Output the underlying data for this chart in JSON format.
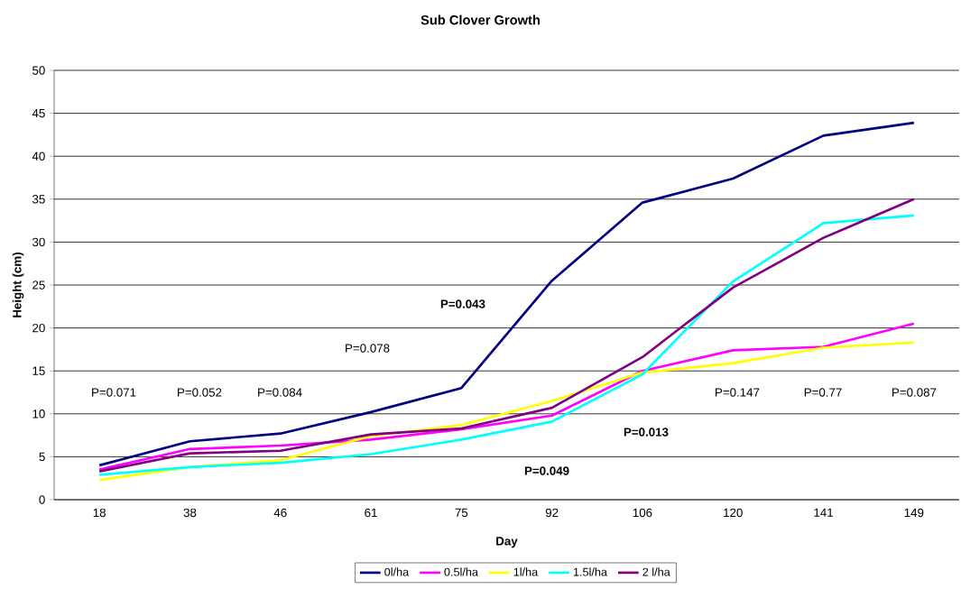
{
  "chart_data": {
    "type": "line",
    "title": "Sub Clover Growth",
    "xlabel": "Day",
    "ylabel": "Height (cm)",
    "categories": [
      "18",
      "38",
      "46",
      "61",
      "75",
      "92",
      "106",
      "120",
      "141",
      "149"
    ],
    "series": [
      {
        "name": "0l/ha",
        "color": "#000080",
        "values": [
          4.0,
          6.8,
          7.7,
          10.2,
          13.0,
          25.5,
          34.6,
          37.4,
          42.4,
          43.9
        ]
      },
      {
        "name": "0.5l/ha",
        "color": "#ff00ff",
        "values": [
          3.5,
          5.9,
          6.3,
          7.0,
          8.2,
          9.8,
          15.0,
          17.4,
          17.8,
          20.5
        ]
      },
      {
        "name": "1l/ha",
        "color": "#ffff00",
        "values": [
          2.3,
          3.8,
          4.6,
          7.4,
          8.7,
          11.5,
          14.8,
          15.9,
          17.7,
          18.3
        ]
      },
      {
        "name": "1.5l/ha",
        "color": "#00ffff",
        "values": [
          2.9,
          3.8,
          4.3,
          5.3,
          7.0,
          9.1,
          14.6,
          25.4,
          32.2,
          33.1
        ]
      },
      {
        "name": "2 l/ha",
        "color": "#800080",
        "values": [
          3.3,
          5.4,
          5.7,
          7.6,
          8.3,
          10.7,
          16.6,
          24.7,
          30.5,
          35.0
        ]
      }
    ],
    "ylim": [
      0,
      50
    ],
    "yticks": [
      0,
      5,
      10,
      15,
      20,
      25,
      30,
      35,
      40,
      45,
      50
    ],
    "grid": "y",
    "legend": "bottom",
    "marker": "none",
    "line_style": "solid",
    "annotations": [
      "P=0.071",
      "P=0.052",
      "P=0.084",
      "P=0.078",
      "P=0.043",
      "P=0.049",
      "P=0.013",
      "P=0.147",
      "P=0.77",
      "P=0.087"
    ]
  }
}
